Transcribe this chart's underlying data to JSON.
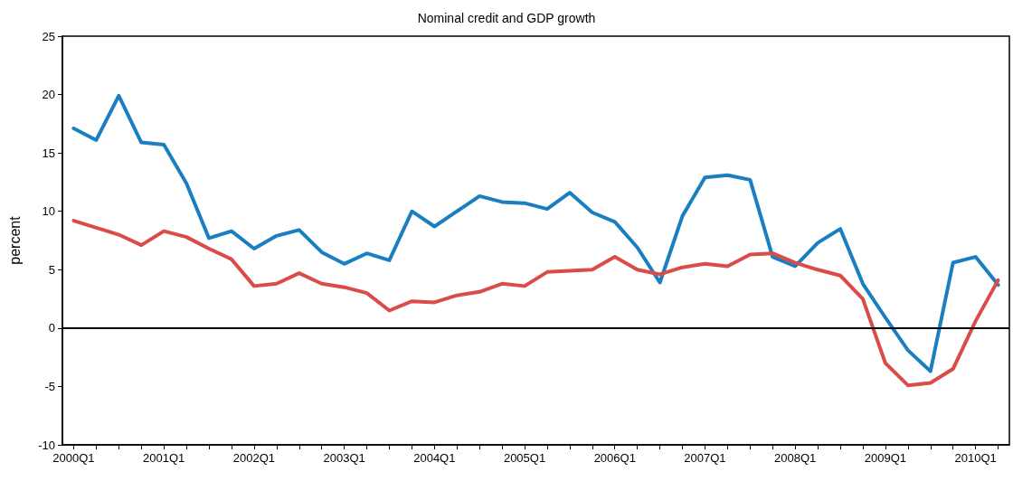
{
  "chart_data": {
    "type": "line",
    "title": "Nominal credit and GDP growth",
    "ylabel": "percent",
    "categories": [
      "2000Q1",
      null,
      null,
      null,
      "2001Q1",
      null,
      null,
      null,
      "2002Q1",
      null,
      null,
      null,
      "2003Q1",
      null,
      null,
      null,
      "2004Q1",
      null,
      null,
      null,
      "2005Q1",
      null,
      null,
      null,
      "2006Q1",
      null,
      null,
      null,
      "2007Q1",
      null,
      null,
      null,
      "2008Q1",
      null,
      null,
      null,
      "2009Q1",
      null,
      null,
      null,
      "2010Q1",
      null
    ],
    "series": [
      {
        "color": "#1a7fc1",
        "values": [
          17.1,
          16.1,
          19.9,
          15.9,
          15.7,
          12.4,
          7.7,
          8.3,
          6.8,
          7.9,
          8.4,
          6.5,
          5.5,
          6.4,
          5.8,
          10.0,
          8.7,
          10.0,
          11.3,
          10.8,
          10.7,
          10.2,
          11.6,
          9.9,
          9.1,
          6.9,
          3.9,
          9.6,
          12.9,
          13.1,
          12.7,
          6.1,
          5.3,
          7.3,
          8.5,
          3.8,
          0.9,
          -1.9,
          -3.7,
          5.6,
          6.1,
          3.7
        ]
      },
      {
        "color": "#db4b47",
        "values": [
          9.2,
          8.6,
          8.0,
          7.1,
          8.3,
          7.8,
          6.8,
          5.9,
          3.6,
          3.8,
          4.7,
          3.8,
          3.5,
          3.0,
          1.5,
          2.3,
          2.2,
          2.8,
          3.1,
          3.8,
          3.6,
          4.8,
          4.9,
          5.0,
          6.1,
          5.0,
          4.6,
          5.2,
          5.5,
          5.3,
          6.3,
          6.4,
          5.6,
          5.0,
          4.5,
          2.5,
          -3.0,
          -4.9,
          -4.7,
          -3.5,
          0.6,
          4.1
        ]
      }
    ],
    "ylim": [
      -10,
      25
    ],
    "yticks": [
      -10,
      -5,
      0,
      5,
      10,
      15,
      20,
      25
    ],
    "ref_lines": [
      {
        "axis": "y",
        "value": 0,
        "color": "#000000"
      }
    ],
    "grid": false,
    "marker": "none",
    "line_style": "solid"
  }
}
